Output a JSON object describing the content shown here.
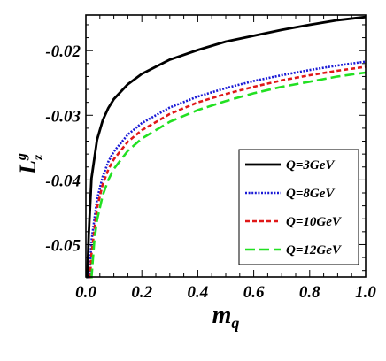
{
  "chart_data": {
    "type": "line",
    "xlabel": {
      "main": "m",
      "sub": "q"
    },
    "ylabel": {
      "main": "L",
      "sub": "z",
      "sup": "g"
    },
    "xlim": [
      0.0,
      1.0
    ],
    "ylim": [
      -0.055,
      -0.0145
    ],
    "xticks": [
      "0.0",
      "0.2",
      "0.4",
      "0.6",
      "0.8",
      "1.0"
    ],
    "xtick_values": [
      0.0,
      0.2,
      0.4,
      0.6,
      0.8,
      1.0
    ],
    "yticks": [
      "-0.02",
      "-0.03",
      "-0.04",
      "-0.05"
    ],
    "ytick_values": [
      -0.02,
      -0.03,
      -0.04,
      -0.05
    ],
    "grid": false,
    "legend_position": "bottom-right",
    "series": [
      {
        "name": "Q=3GeV",
        "color": "#000000",
        "dash": "solid",
        "x": [
          0.005,
          0.01,
          0.02,
          0.04,
          0.06,
          0.08,
          0.1,
          0.15,
          0.2,
          0.3,
          0.4,
          0.5,
          0.6,
          0.7,
          0.8,
          0.9,
          1.0
        ],
        "y": [
          -0.0552,
          -0.0485,
          -0.0398,
          -0.0338,
          -0.0308,
          -0.0289,
          -0.0275,
          -0.0252,
          -0.0236,
          -0.0214,
          -0.0199,
          -0.0186,
          -0.0177,
          -0.0168,
          -0.016,
          -0.0153,
          -0.0148
        ]
      },
      {
        "name": "Q=8GeV",
        "color": "#1a1ad6",
        "dash": "dotted",
        "x": [
          0.012,
          0.02,
          0.04,
          0.06,
          0.08,
          0.1,
          0.15,
          0.2,
          0.3,
          0.4,
          0.5,
          0.6,
          0.7,
          0.8,
          0.9,
          1.0
        ],
        "y": [
          -0.0552,
          -0.0495,
          -0.043,
          -0.0395,
          -0.0372,
          -0.0356,
          -0.033,
          -0.0312,
          -0.0288,
          -0.0271,
          -0.0258,
          -0.0247,
          -0.0238,
          -0.023,
          -0.0223,
          -0.0217
        ]
      },
      {
        "name": "Q=10GeV",
        "color": "#e01818",
        "dash": "dashed",
        "x": [
          0.015,
          0.02,
          0.04,
          0.06,
          0.08,
          0.1,
          0.15,
          0.2,
          0.3,
          0.4,
          0.5,
          0.6,
          0.7,
          0.8,
          0.9,
          1.0
        ],
        "y": [
          -0.0552,
          -0.0515,
          -0.0443,
          -0.0407,
          -0.0384,
          -0.0368,
          -0.0341,
          -0.0323,
          -0.0298,
          -0.028,
          -0.0267,
          -0.0256,
          -0.0246,
          -0.0238,
          -0.0231,
          -0.0225
        ]
      },
      {
        "name": "Q=12GeV",
        "color": "#22e022",
        "dash": "longdash",
        "x": [
          0.02,
          0.03,
          0.04,
          0.06,
          0.08,
          0.1,
          0.15,
          0.2,
          0.3,
          0.4,
          0.5,
          0.6,
          0.7,
          0.8,
          0.9,
          1.0
        ],
        "y": [
          -0.0552,
          -0.0495,
          -0.0462,
          -0.0424,
          -0.04,
          -0.0383,
          -0.0355,
          -0.0336,
          -0.031,
          -0.0292,
          -0.0278,
          -0.0266,
          -0.0256,
          -0.0248,
          -0.024,
          -0.0234
        ]
      }
    ]
  }
}
